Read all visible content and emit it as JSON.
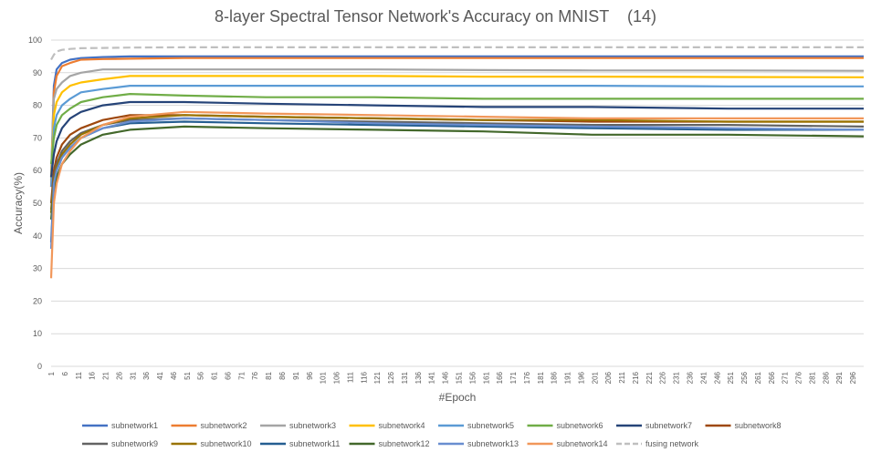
{
  "chart_data": {
    "type": "line",
    "title": "8-layer Spectral Tensor Network's Accuracy on MNIST    (14)",
    "xlabel": "#Epoch",
    "ylabel": "Accuracy(%)",
    "ylim": [
      0,
      100
    ],
    "yticks": [
      0,
      10,
      20,
      30,
      40,
      50,
      60,
      70,
      80,
      90,
      100
    ],
    "xlim": [
      1,
      300
    ],
    "xticks": [
      1,
      6,
      11,
      16,
      21,
      26,
      31,
      36,
      41,
      46,
      51,
      56,
      61,
      66,
      71,
      76,
      81,
      86,
      91,
      96,
      101,
      106,
      111,
      116,
      121,
      126,
      131,
      136,
      141,
      146,
      151,
      156,
      161,
      166,
      171,
      176,
      181,
      186,
      191,
      196,
      201,
      206,
      211,
      216,
      221,
      226,
      231,
      236,
      241,
      246,
      251,
      256,
      261,
      266,
      271,
      276,
      281,
      286,
      291,
      296
    ],
    "grid": "horizontal",
    "legend_position": "bottom",
    "series": [
      {
        "name": "subnetwork1",
        "color": "#4472C4",
        "dash": "none",
        "x": [
          1,
          2,
          3,
          5,
          8,
          12,
          20,
          30,
          50,
          80,
          120,
          160,
          200,
          250,
          300
        ],
        "values": [
          58,
          86,
          91,
          93,
          94,
          94.5,
          94.8,
          95,
          95,
          95,
          95,
          95,
          95,
          95,
          95
        ]
      },
      {
        "name": "subnetwork2",
        "color": "#ED7D31",
        "dash": "none",
        "x": [
          1,
          2,
          3,
          5,
          8,
          12,
          20,
          30,
          50,
          80,
          120,
          160,
          200,
          250,
          300
        ],
        "values": [
          55,
          84,
          89,
          92,
          93,
          94,
          94.2,
          94.3,
          94.5,
          94.5,
          94.5,
          94.5,
          94.5,
          94.5,
          94.5
        ]
      },
      {
        "name": "subnetwork3",
        "color": "#A5A5A5",
        "dash": "none",
        "x": [
          1,
          2,
          3,
          5,
          8,
          12,
          20,
          30,
          50,
          80,
          120,
          160,
          200,
          250,
          300
        ],
        "values": [
          58,
          82,
          85,
          87,
          89,
          90,
          91,
          91,
          91,
          91,
          91,
          90.8,
          90.7,
          90.7,
          90.6
        ]
      },
      {
        "name": "subnetwork4",
        "color": "#FFC000",
        "dash": "none",
        "x": [
          1,
          2,
          3,
          5,
          8,
          12,
          20,
          30,
          50,
          80,
          120,
          160,
          200,
          250,
          300
        ],
        "values": [
          57,
          77,
          81,
          84,
          86,
          87,
          88,
          89,
          89,
          89,
          89,
          88.8,
          88.8,
          88.7,
          88.6
        ]
      },
      {
        "name": "subnetwork5",
        "color": "#5B9BD5",
        "dash": "none",
        "x": [
          1,
          2,
          3,
          5,
          8,
          12,
          20,
          30,
          50,
          80,
          120,
          160,
          200,
          250,
          300
        ],
        "values": [
          55,
          73,
          77,
          80,
          82,
          84,
          85,
          86,
          86,
          86,
          86,
          86,
          86,
          85.8,
          85.8
        ]
      },
      {
        "name": "subnetwork6",
        "color": "#70AD47",
        "dash": "none",
        "x": [
          1,
          2,
          3,
          5,
          8,
          12,
          20,
          30,
          50,
          80,
          120,
          160,
          200,
          250,
          300
        ],
        "values": [
          62,
          70,
          74,
          77,
          79,
          81,
          82.5,
          83.5,
          83,
          82.5,
          82.5,
          82,
          82,
          82,
          82
        ]
      },
      {
        "name": "subnetwork7",
        "color": "#264478",
        "dash": "none",
        "x": [
          1,
          2,
          3,
          5,
          8,
          12,
          20,
          30,
          50,
          80,
          120,
          160,
          200,
          250,
          300
        ],
        "values": [
          58,
          65,
          69,
          73,
          76,
          78,
          80,
          81,
          81,
          80.5,
          80,
          79.5,
          79.5,
          79,
          79
        ]
      },
      {
        "name": "subnetwork8",
        "color": "#9E480E",
        "dash": "none",
        "x": [
          1,
          2,
          3,
          5,
          8,
          12,
          20,
          30,
          50,
          80,
          120,
          160,
          200,
          250,
          300
        ],
        "values": [
          50,
          60,
          64,
          68,
          71,
          73,
          75.5,
          77,
          77,
          76.5,
          76,
          75.5,
          75,
          75,
          75
        ]
      },
      {
        "name": "subnetwork9",
        "color": "#636363",
        "dash": "none",
        "x": [
          1,
          2,
          3,
          5,
          8,
          12,
          20,
          30,
          50,
          80,
          120,
          160,
          200,
          250,
          300
        ],
        "values": [
          48,
          58,
          62,
          66,
          69,
          71.5,
          74,
          75.5,
          76,
          75.5,
          75,
          74.5,
          74,
          74,
          73.5
        ]
      },
      {
        "name": "subnetwork10",
        "color": "#997300",
        "dash": "none",
        "x": [
          1,
          2,
          3,
          5,
          8,
          12,
          20,
          30,
          50,
          80,
          120,
          160,
          200,
          250,
          300
        ],
        "values": [
          47,
          57,
          61,
          65,
          68,
          71,
          74,
          76,
          77,
          76.5,
          76,
          75.5,
          75.5,
          75,
          75
        ]
      },
      {
        "name": "subnetwork11",
        "color": "#255E91",
        "dash": "none",
        "x": [
          1,
          2,
          3,
          5,
          8,
          12,
          20,
          30,
          50,
          80,
          120,
          160,
          200,
          250,
          300
        ],
        "values": [
          38,
          56,
          60,
          64,
          67,
          70,
          73,
          74.5,
          75,
          74.5,
          74,
          73.5,
          73,
          72.5,
          72.5
        ]
      },
      {
        "name": "subnetwork12",
        "color": "#43682B",
        "dash": "none",
        "x": [
          1,
          2,
          3,
          5,
          8,
          12,
          20,
          30,
          50,
          80,
          120,
          160,
          200,
          250,
          300
        ],
        "values": [
          45,
          54,
          58,
          62,
          65,
          68,
          71,
          72.5,
          73.5,
          73,
          72.5,
          72,
          71,
          71,
          70.5
        ]
      },
      {
        "name": "subnetwork13",
        "color": "#698ED0",
        "dash": "none",
        "x": [
          1,
          2,
          3,
          5,
          8,
          12,
          20,
          30,
          50,
          80,
          120,
          160,
          200,
          250,
          300
        ],
        "values": [
          36,
          56,
          60,
          64,
          67,
          70,
          73,
          75,
          76,
          75.5,
          74.5,
          74,
          73.5,
          73,
          72.5
        ]
      },
      {
        "name": "subnetwork14",
        "color": "#F1975A",
        "dash": "none",
        "x": [
          1,
          2,
          3,
          5,
          8,
          12,
          20,
          30,
          50,
          80,
          120,
          160,
          200,
          250,
          300
        ],
        "values": [
          27,
          50,
          56,
          62,
          66,
          70,
          74,
          76.5,
          78,
          77.5,
          77,
          76.5,
          76,
          76,
          76
        ]
      },
      {
        "name": "fusing network",
        "color": "#BFBFBF",
        "dash": "8,4",
        "x": [
          1,
          2,
          3,
          5,
          8,
          12,
          20,
          30,
          50,
          80,
          120,
          160,
          200,
          250,
          300
        ],
        "values": [
          94,
          95.5,
          96.5,
          97,
          97.3,
          97.5,
          97.6,
          97.7,
          97.8,
          97.8,
          97.8,
          97.8,
          97.8,
          97.8,
          97.8
        ]
      }
    ]
  }
}
